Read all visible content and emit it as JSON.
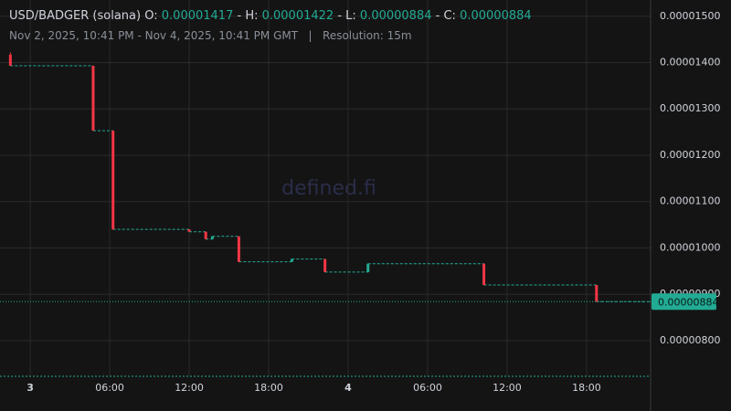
{
  "chart_data": {
    "type": "candlestick",
    "title": "USD/BADGER (solana)",
    "ohlc": [
      {
        "key": "O:",
        "value": "0.00001417"
      },
      {
        "key": "H:",
        "value": "0.00001422"
      },
      {
        "key": "L:",
        "value": "0.00000884"
      },
      {
        "key": "C:",
        "value": "0.00000884"
      }
    ],
    "range_text": "Nov 2, 2025, 10:41 PM - Nov 4, 2025, 10:41 PM GMT",
    "separator": "|",
    "resolution": "Resolution: 15m",
    "watermark": "defined.fi",
    "x": [
      "2025-11-02 22:30",
      "2025-11-03 04:45",
      "2025-11-03 06:15",
      "2025-11-03 12:00",
      "2025-11-03 13:15",
      "2025-11-03 13:45",
      "2025-11-03 15:45",
      "2025-11-03 19:45",
      "2025-11-03 22:15",
      "2025-11-04 01:30",
      "2025-11-04 10:15",
      "2025-11-04 18:45"
    ],
    "open": [
      1.417e-05,
      1.393e-05,
      1.253e-05,
      1.04e-05,
      1.035e-05,
      1.019e-05,
      1.025e-05,
      9.7e-06,
      9.76e-06,
      9.48e-06,
      9.66e-06,
      9.2e-06
    ],
    "high": [
      1.422e-05,
      1.393e-05,
      1.253e-05,
      1.04e-05,
      1.035e-05,
      1.025e-05,
      1.025e-05,
      9.76e-06,
      9.76e-06,
      9.66e-06,
      9.66e-06,
      9.2e-06
    ],
    "low": [
      1.393e-05,
      1.253e-05,
      1.04e-05,
      1.035e-05,
      1.019e-05,
      1.019e-05,
      9.7e-06,
      9.7e-06,
      9.48e-06,
      9.48e-06,
      9.2e-06,
      8.84e-06
    ],
    "close": [
      1.393e-05,
      1.253e-05,
      1.04e-05,
      1.035e-05,
      1.019e-05,
      1.025e-05,
      9.7e-06,
      9.76e-06,
      9.48e-06,
      9.66e-06,
      9.2e-06,
      8.84e-06
    ],
    "up_color": "#22ab94",
    "down_color": "#f23645",
    "last_price": {
      "value": 8.84e-06,
      "label": "0.00000884"
    },
    "xlim": [
      "2025-11-02 21:43",
      "2025-11-04 22:50"
    ],
    "xticks": [
      {
        "value": "2025-11-03 00:00",
        "label": "3"
      },
      {
        "value": "2025-11-03 06:00",
        "label": "06:00"
      },
      {
        "value": "2025-11-03 12:00",
        "label": "12:00"
      },
      {
        "value": "2025-11-03 18:00",
        "label": "18:00"
      },
      {
        "value": "2025-11-04 00:00",
        "label": "4"
      },
      {
        "value": "2025-11-04 06:00",
        "label": "06:00"
      },
      {
        "value": "2025-11-04 12:00",
        "label": "12:00"
      },
      {
        "value": "2025-11-04 18:00",
        "label": "18:00"
      }
    ],
    "ylim": [
      7.23e-06,
      1.535e-05
    ],
    "yticks": [
      {
        "value": 8e-06,
        "label": "0.00000800"
      },
      {
        "value": 9e-06,
        "label": "0.00000900"
      },
      {
        "value": 1e-05,
        "label": "0.00001000"
      },
      {
        "value": 1.1e-05,
        "label": "0.00001100"
      },
      {
        "value": 1.2e-05,
        "label": "0.00001200"
      },
      {
        "value": 1.3e-05,
        "label": "0.00001300"
      },
      {
        "value": 1.4e-05,
        "label": "0.00001400"
      },
      {
        "value": 1.5e-05,
        "label": "0.00001500"
      }
    ],
    "grid": true
  }
}
